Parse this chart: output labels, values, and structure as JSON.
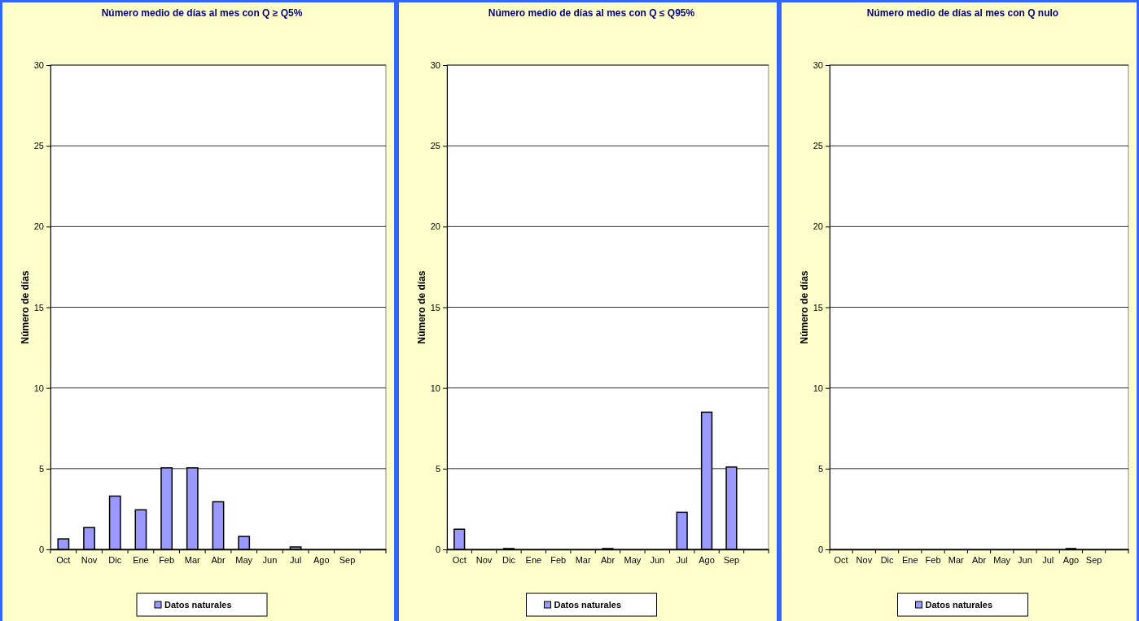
{
  "chart_data": [
    {
      "type": "bar",
      "title": "Número medio de días al mes con Q ≥ Q5%",
      "ylabel": "Número de días",
      "categories": [
        "Oct",
        "Nov",
        "Dic",
        "Ene",
        "Feb",
        "Mar",
        "Abr",
        "May",
        "Jun",
        "Jul",
        "Ago",
        "Sep",
        null
      ],
      "series": [
        {
          "name": "Datos naturales",
          "color": "#9999ff",
          "values": [
            0.65,
            1.35,
            3.3,
            2.45,
            5.05,
            5.05,
            2.95,
            0.8,
            0,
            0.15,
            0,
            0,
            null
          ]
        }
      ],
      "ylim": [
        0,
        30
      ],
      "yticks": [
        0,
        5,
        10,
        15,
        20,
        25,
        30
      ],
      "grid": "y",
      "legend": "bottom"
    },
    {
      "type": "bar",
      "title": "Número medio de días al mes con Q ≤ Q95%",
      "ylabel": "Número de días",
      "categories": [
        "Oct",
        "Nov",
        "Dic",
        "Ene",
        "Feb",
        "Mar",
        "Abr",
        "May",
        "Jun",
        "Jul",
        "Ago",
        "Sep",
        null
      ],
      "series": [
        {
          "name": "Datos naturales",
          "color": "#9999ff",
          "values": [
            1.25,
            0,
            0.05,
            0,
            0,
            0,
            0.05,
            0,
            0,
            2.3,
            8.5,
            5.1,
            null
          ]
        }
      ],
      "ylim": [
        0,
        30
      ],
      "yticks": [
        0,
        5,
        10,
        15,
        20,
        25,
        30
      ],
      "grid": "y",
      "legend": "bottom"
    },
    {
      "type": "bar",
      "title": "Número medio de días al mes con Q nulo",
      "ylabel": "Número de días",
      "categories": [
        "Oct",
        "Nov",
        "Dic",
        "Ene",
        "Feb",
        "Mar",
        "Abr",
        "May",
        "Jun",
        "Jul",
        "Ago",
        "Sep",
        null
      ],
      "series": [
        {
          "name": "Datos naturales",
          "color": "#9999ff",
          "values": [
            0,
            0,
            0,
            0,
            0,
            0,
            0,
            0,
            0,
            0,
            0.05,
            0,
            null
          ]
        }
      ],
      "ylim": [
        0,
        30
      ],
      "yticks": [
        0,
        5,
        10,
        15,
        20,
        25,
        30
      ],
      "grid": "y",
      "legend": "bottom"
    }
  ]
}
